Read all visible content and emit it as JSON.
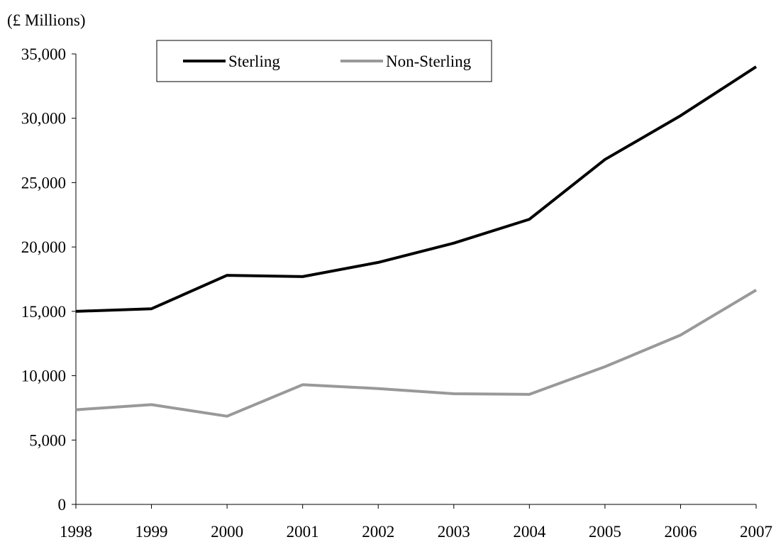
{
  "chart_data": {
    "type": "line",
    "title": "",
    "unit_label": "(£ Millions)",
    "xlabel": "",
    "ylabel": "",
    "x": [
      "1998",
      "1999",
      "2000",
      "2001",
      "2002",
      "2003",
      "2004",
      "2005",
      "2006",
      "2007"
    ],
    "ylim": [
      0,
      35000
    ],
    "y_ticks": [
      0,
      5000,
      10000,
      15000,
      20000,
      25000,
      30000,
      35000
    ],
    "y_tick_labels": [
      "0",
      "5,000",
      "10,000",
      "15,000",
      "20,000",
      "25,000",
      "30,000",
      "35,000"
    ],
    "grid": false,
    "legend_position": "top-center",
    "series": [
      {
        "name": "Sterling",
        "color": "#000000",
        "values": [
          15000,
          15200,
          17800,
          17700,
          18800,
          20300,
          22150,
          26800,
          30200,
          34000
        ]
      },
      {
        "name": "Non-Sterling",
        "color": "#999999",
        "values": [
          7350,
          7750,
          6850,
          9300,
          9000,
          8600,
          8550,
          10700,
          13150,
          16650
        ]
      }
    ]
  }
}
